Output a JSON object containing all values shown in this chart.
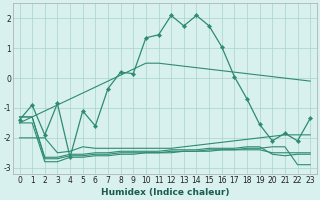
{
  "xlabel": "Humidex (Indice chaleur)",
  "x": [
    0,
    1,
    2,
    3,
    4,
    5,
    6,
    7,
    8,
    9,
    10,
    11,
    12,
    13,
    14,
    15,
    16,
    17,
    18,
    19,
    20,
    21,
    22,
    23
  ],
  "line_main": [
    -1.4,
    -0.9,
    -1.9,
    -0.85,
    -2.65,
    -1.1,
    -1.6,
    -0.35,
    0.2,
    0.15,
    1.35,
    1.45,
    2.1,
    1.75,
    2.1,
    1.75,
    1.05,
    0.05,
    -0.7,
    -1.55,
    -2.1,
    -1.85,
    -2.1,
    -1.35
  ],
  "line_trend": [
    -1.5,
    -1.3,
    -1.1,
    -0.9,
    -0.7,
    -0.5,
    -0.3,
    -0.1,
    0.1,
    0.3,
    0.5,
    0.5,
    0.45,
    0.4,
    0.35,
    0.3,
    0.25,
    0.2,
    0.15,
    0.1,
    0.05,
    0.0,
    -0.05,
    -0.1
  ],
  "line_flat1": [
    -2.0,
    -2.0,
    -2.0,
    -2.5,
    -2.45,
    -2.3,
    -2.35,
    -2.35,
    -2.35,
    -2.35,
    -2.35,
    -2.35,
    -2.35,
    -2.3,
    -2.25,
    -2.2,
    -2.15,
    -2.1,
    -2.05,
    -2.0,
    -1.95,
    -1.9,
    -1.9,
    -1.9
  ],
  "line_flat2": [
    -1.3,
    -1.3,
    -2.65,
    -2.65,
    -2.55,
    -2.55,
    -2.5,
    -2.5,
    -2.45,
    -2.45,
    -2.45,
    -2.45,
    -2.4,
    -2.4,
    -2.4,
    -2.35,
    -2.35,
    -2.35,
    -2.3,
    -2.3,
    -2.55,
    -2.6,
    -2.55,
    -2.55
  ],
  "line_flat3": [
    -1.3,
    -1.3,
    -2.7,
    -2.7,
    -2.6,
    -2.6,
    -2.55,
    -2.55,
    -2.5,
    -2.5,
    -2.5,
    -2.5,
    -2.45,
    -2.45,
    -2.45,
    -2.4,
    -2.4,
    -2.4,
    -2.35,
    -2.35,
    -2.3,
    -2.3,
    -2.9,
    -2.9
  ],
  "line_flat4": [
    -1.5,
    -1.5,
    -2.8,
    -2.8,
    -2.65,
    -2.65,
    -2.6,
    -2.6,
    -2.55,
    -2.55,
    -2.5,
    -2.5,
    -2.5,
    -2.45,
    -2.45,
    -2.45,
    -2.4,
    -2.4,
    -2.4,
    -2.4,
    -2.5,
    -2.5,
    -2.5,
    -2.5
  ],
  "line_color": "#2e8b73",
  "bg_color": "#d8f0ee",
  "grid_color": "#aad4ce",
  "ylim": [
    -3.2,
    2.5
  ],
  "yticks": [
    -3,
    -2,
    -1,
    0,
    1,
    2
  ]
}
